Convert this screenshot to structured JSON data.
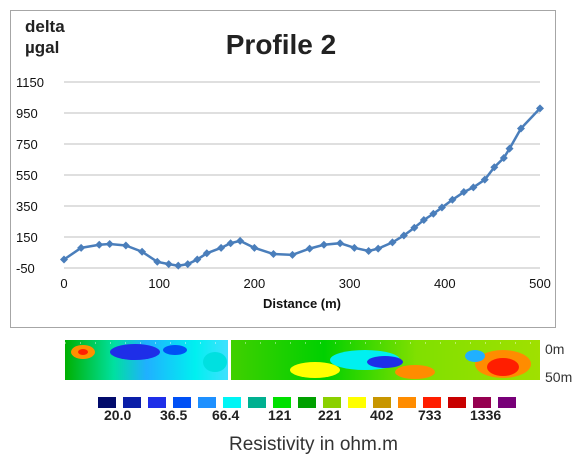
{
  "chart_data": {
    "type": "line",
    "title": "Profile 2",
    "ylabel": "delta µgal",
    "xlabel": "Distance (m)",
    "xlim": [
      0,
      500
    ],
    "ylim": [
      -50,
      1150
    ],
    "xticks": [
      0,
      100,
      200,
      300,
      400,
      500
    ],
    "yticks": [
      -50,
      150,
      350,
      550,
      750,
      950,
      1150
    ],
    "grid": "horizontal",
    "series": [
      {
        "color": "#4a7ebb",
        "x": [
          0,
          18,
          37,
          48,
          65,
          82,
          98,
          110,
          120,
          130,
          140,
          150,
          165,
          175,
          185,
          200,
          220,
          240,
          258,
          273,
          290,
          305,
          320,
          330,
          345,
          357,
          368,
          378,
          388,
          397,
          408,
          420,
          430,
          442,
          452,
          462,
          468,
          480,
          500
        ],
        "y": [
          5,
          80,
          100,
          105,
          95,
          55,
          -10,
          -25,
          -35,
          -25,
          5,
          45,
          80,
          110,
          125,
          80,
          40,
          35,
          75,
          100,
          110,
          80,
          60,
          75,
          115,
          160,
          210,
          260,
          300,
          340,
          390,
          440,
          470,
          520,
          600,
          660,
          720,
          850,
          980
        ]
      }
    ]
  },
  "section": {
    "depth_top": "0m",
    "depth_bottom": "50m"
  },
  "legend": {
    "colors": [
      "#020b6b",
      "#0a1ea8",
      "#1e2ee8",
      "#0050f5",
      "#1e90ff",
      "#00f5f5",
      "#00b090",
      "#00e000",
      "#00a000",
      "#8bd000",
      "#ffff00",
      "#c89600",
      "#ff8c00",
      "#ff1e00",
      "#c80000",
      "#960050",
      "#780078"
    ],
    "values": [
      "20.0",
      "36.5",
      "66.4",
      "121",
      "221",
      "402",
      "733",
      "1336"
    ],
    "title": "Resistivity in ohm.m"
  }
}
